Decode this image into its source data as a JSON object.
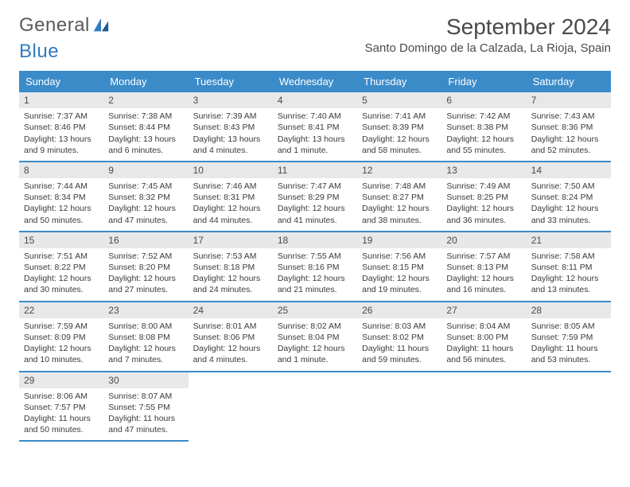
{
  "logo": {
    "text1": "General",
    "text2": "Blue"
  },
  "title": "September 2024",
  "location": "Santo Domingo de la Calzada, La Rioja, Spain",
  "colors": {
    "header_bg": "#3b8bc9",
    "day_bar_bg": "#e8e8e8",
    "row_border": "#3b8bc9",
    "logo_blue": "#2f7bbf",
    "text": "#3a3a3a"
  },
  "weekdays": [
    "Sunday",
    "Monday",
    "Tuesday",
    "Wednesday",
    "Thursday",
    "Friday",
    "Saturday"
  ],
  "weeks": [
    [
      {
        "n": "1",
        "sr": "Sunrise: 7:37 AM",
        "ss": "Sunset: 8:46 PM",
        "dl": "Daylight: 13 hours and 9 minutes."
      },
      {
        "n": "2",
        "sr": "Sunrise: 7:38 AM",
        "ss": "Sunset: 8:44 PM",
        "dl": "Daylight: 13 hours and 6 minutes."
      },
      {
        "n": "3",
        "sr": "Sunrise: 7:39 AM",
        "ss": "Sunset: 8:43 PM",
        "dl": "Daylight: 13 hours and 4 minutes."
      },
      {
        "n": "4",
        "sr": "Sunrise: 7:40 AM",
        "ss": "Sunset: 8:41 PM",
        "dl": "Daylight: 13 hours and 1 minute."
      },
      {
        "n": "5",
        "sr": "Sunrise: 7:41 AM",
        "ss": "Sunset: 8:39 PM",
        "dl": "Daylight: 12 hours and 58 minutes."
      },
      {
        "n": "6",
        "sr": "Sunrise: 7:42 AM",
        "ss": "Sunset: 8:38 PM",
        "dl": "Daylight: 12 hours and 55 minutes."
      },
      {
        "n": "7",
        "sr": "Sunrise: 7:43 AM",
        "ss": "Sunset: 8:36 PM",
        "dl": "Daylight: 12 hours and 52 minutes."
      }
    ],
    [
      {
        "n": "8",
        "sr": "Sunrise: 7:44 AM",
        "ss": "Sunset: 8:34 PM",
        "dl": "Daylight: 12 hours and 50 minutes."
      },
      {
        "n": "9",
        "sr": "Sunrise: 7:45 AM",
        "ss": "Sunset: 8:32 PM",
        "dl": "Daylight: 12 hours and 47 minutes."
      },
      {
        "n": "10",
        "sr": "Sunrise: 7:46 AM",
        "ss": "Sunset: 8:31 PM",
        "dl": "Daylight: 12 hours and 44 minutes."
      },
      {
        "n": "11",
        "sr": "Sunrise: 7:47 AM",
        "ss": "Sunset: 8:29 PM",
        "dl": "Daylight: 12 hours and 41 minutes."
      },
      {
        "n": "12",
        "sr": "Sunrise: 7:48 AM",
        "ss": "Sunset: 8:27 PM",
        "dl": "Daylight: 12 hours and 38 minutes."
      },
      {
        "n": "13",
        "sr": "Sunrise: 7:49 AM",
        "ss": "Sunset: 8:25 PM",
        "dl": "Daylight: 12 hours and 36 minutes."
      },
      {
        "n": "14",
        "sr": "Sunrise: 7:50 AM",
        "ss": "Sunset: 8:24 PM",
        "dl": "Daylight: 12 hours and 33 minutes."
      }
    ],
    [
      {
        "n": "15",
        "sr": "Sunrise: 7:51 AM",
        "ss": "Sunset: 8:22 PM",
        "dl": "Daylight: 12 hours and 30 minutes."
      },
      {
        "n": "16",
        "sr": "Sunrise: 7:52 AM",
        "ss": "Sunset: 8:20 PM",
        "dl": "Daylight: 12 hours and 27 minutes."
      },
      {
        "n": "17",
        "sr": "Sunrise: 7:53 AM",
        "ss": "Sunset: 8:18 PM",
        "dl": "Daylight: 12 hours and 24 minutes."
      },
      {
        "n": "18",
        "sr": "Sunrise: 7:55 AM",
        "ss": "Sunset: 8:16 PM",
        "dl": "Daylight: 12 hours and 21 minutes."
      },
      {
        "n": "19",
        "sr": "Sunrise: 7:56 AM",
        "ss": "Sunset: 8:15 PM",
        "dl": "Daylight: 12 hours and 19 minutes."
      },
      {
        "n": "20",
        "sr": "Sunrise: 7:57 AM",
        "ss": "Sunset: 8:13 PM",
        "dl": "Daylight: 12 hours and 16 minutes."
      },
      {
        "n": "21",
        "sr": "Sunrise: 7:58 AM",
        "ss": "Sunset: 8:11 PM",
        "dl": "Daylight: 12 hours and 13 minutes."
      }
    ],
    [
      {
        "n": "22",
        "sr": "Sunrise: 7:59 AM",
        "ss": "Sunset: 8:09 PM",
        "dl": "Daylight: 12 hours and 10 minutes."
      },
      {
        "n": "23",
        "sr": "Sunrise: 8:00 AM",
        "ss": "Sunset: 8:08 PM",
        "dl": "Daylight: 12 hours and 7 minutes."
      },
      {
        "n": "24",
        "sr": "Sunrise: 8:01 AM",
        "ss": "Sunset: 8:06 PM",
        "dl": "Daylight: 12 hours and 4 minutes."
      },
      {
        "n": "25",
        "sr": "Sunrise: 8:02 AM",
        "ss": "Sunset: 8:04 PM",
        "dl": "Daylight: 12 hours and 1 minute."
      },
      {
        "n": "26",
        "sr": "Sunrise: 8:03 AM",
        "ss": "Sunset: 8:02 PM",
        "dl": "Daylight: 11 hours and 59 minutes."
      },
      {
        "n": "27",
        "sr": "Sunrise: 8:04 AM",
        "ss": "Sunset: 8:00 PM",
        "dl": "Daylight: 11 hours and 56 minutes."
      },
      {
        "n": "28",
        "sr": "Sunrise: 8:05 AM",
        "ss": "Sunset: 7:59 PM",
        "dl": "Daylight: 11 hours and 53 minutes."
      }
    ],
    [
      {
        "n": "29",
        "sr": "Sunrise: 8:06 AM",
        "ss": "Sunset: 7:57 PM",
        "dl": "Daylight: 11 hours and 50 minutes."
      },
      {
        "n": "30",
        "sr": "Sunrise: 8:07 AM",
        "ss": "Sunset: 7:55 PM",
        "dl": "Daylight: 11 hours and 47 minutes."
      },
      null,
      null,
      null,
      null,
      null
    ]
  ]
}
